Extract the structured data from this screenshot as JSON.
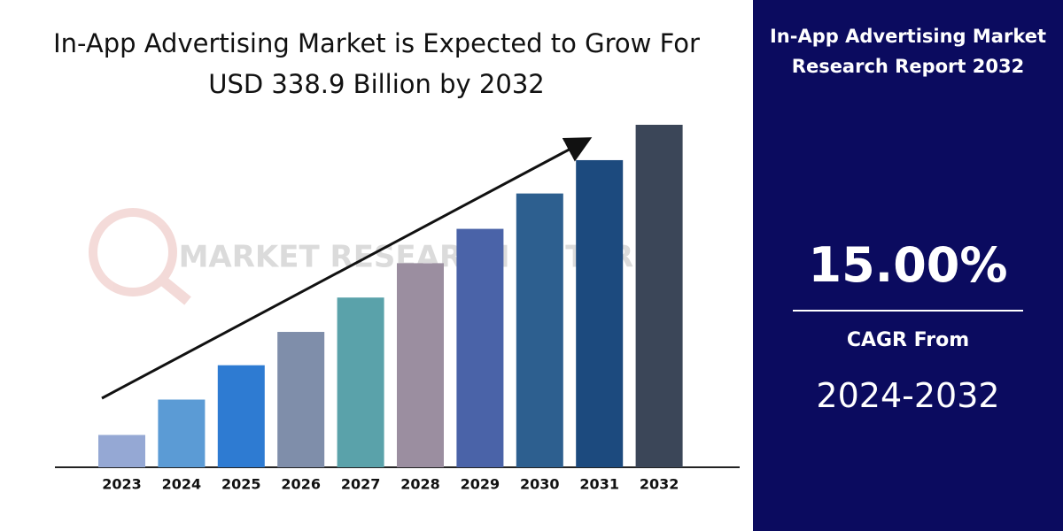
{
  "chart_data": {
    "type": "bar",
    "title": "In-App Advertising Market is Expected to Grow For USD 338.9 Billion by 2032",
    "watermark": "MARKET RESEARCH FUTURE",
    "categories": [
      "2023",
      "2024",
      "2025",
      "2026",
      "2027",
      "2028",
      "2029",
      "2030",
      "2031",
      "2032"
    ],
    "values": [
      32,
      67,
      101,
      134,
      168,
      202,
      236,
      271,
      304,
      339
    ],
    "colors": [
      "#95a8d4",
      "#5b9bd5",
      "#2e7bd2",
      "#7f8eaa",
      "#5aa2aa",
      "#9b8ea0",
      "#4a63a8",
      "#2d5f8f",
      "#1c4a7e",
      "#3b4658"
    ],
    "ylim": [
      0,
      339
    ]
  },
  "side_panel": {
    "title": "In-App Advertising Market Research Report 2032",
    "cagr": "15.00%",
    "cagr_label": "CAGR From",
    "period": "2024-2032"
  }
}
